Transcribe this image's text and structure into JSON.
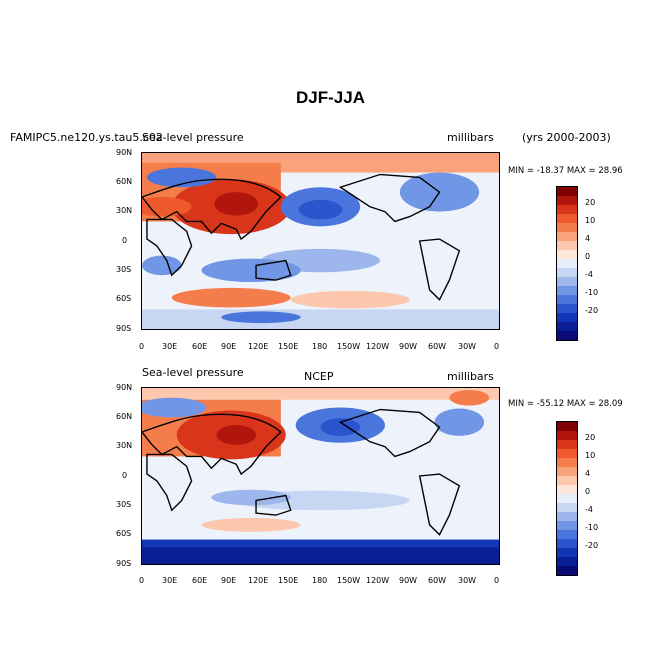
{
  "title": "DJF-JJA",
  "panels": [
    {
      "case_label": "FAMIPC5.ne120.ys.tau5.c02",
      "variable": "Sea-level pressure",
      "source": "",
      "units": "millibars",
      "years": "(yrs 2000-2003)",
      "minmax": "MIN = -18.37 MAX =  28.96"
    },
    {
      "case_label": "",
      "variable": "Sea-level pressure",
      "source": "NCEP",
      "units": "millibars",
      "years": "",
      "minmax": "MIN = -55.12 MAX =  28.09"
    }
  ],
  "axes": {
    "lat_labels": [
      "90N",
      "60N",
      "30N",
      "0",
      "30S",
      "60S",
      "90S"
    ],
    "lon_labels": [
      "0",
      "30E",
      "60E",
      "90E",
      "120E",
      "150E",
      "180",
      "150W",
      "120W",
      "90W",
      "60W",
      "30W",
      "0"
    ]
  },
  "colorbar": {
    "labels": [
      "20",
      "10",
      "4",
      "0",
      "-4",
      "-10",
      "-20"
    ],
    "colors": [
      "#7f0000",
      "#b0160c",
      "#d8351a",
      "#ee5a2c",
      "#f57d4b",
      "#f9a27b",
      "#fcc7ac",
      "#fde6d8",
      "#e6eef9",
      "#c6d6f3",
      "#9db7ec",
      "#7096e5",
      "#4a75dc",
      "#2a55cf",
      "#1236b8",
      "#0a1f96",
      "#0a0a78"
    ]
  },
  "palette": {
    "land": "#000000",
    "neutral": "#eef3fb"
  }
}
